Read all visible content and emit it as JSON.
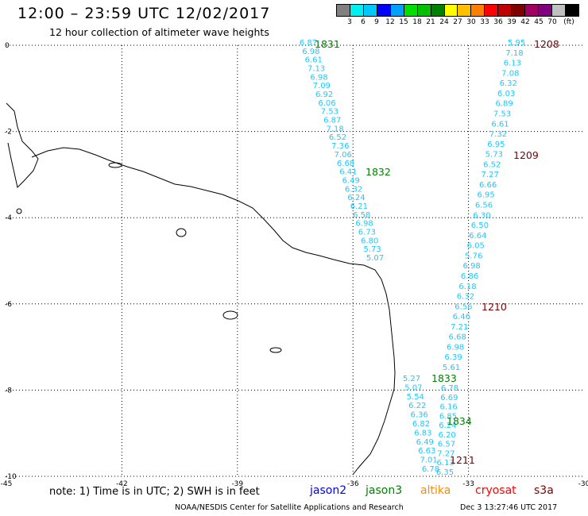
{
  "title": "12:00 – 23:59 UTC 12/02/2017",
  "subtitle": "12 hour collection of altimeter wave heights",
  "scale": {
    "colors": [
      "#808080",
      "#00f0f0",
      "#00c8ff",
      "#0000ff",
      "#00a0ff",
      "#00e000",
      "#00c000",
      "#008000",
      "#ffff00",
      "#ffc000",
      "#ff8000",
      "#ff0000",
      "#c00000",
      "#800000",
      "#a00060",
      "#800080",
      "#c0c0c0",
      "#000000"
    ],
    "labels": [
      "3",
      "6",
      "9",
      "12",
      "15",
      "18",
      "21",
      "24",
      "27",
      "30",
      "33",
      "36",
      "39",
      "42",
      "45",
      "70",
      "(ft)"
    ]
  },
  "axes": {
    "lon_ticks": [
      "-45",
      "-42",
      "-39",
      "-36",
      "-33",
      "-30"
    ],
    "lat_ticks": [
      "0",
      "-2",
      "-4",
      "-6",
      "-8",
      "-10"
    ]
  },
  "tracks": [
    {
      "sat": "jason3",
      "color": "#1ec8ff",
      "values": [
        "6.87",
        "6.98",
        "6.61",
        "7.13",
        "6.98",
        "7.09",
        "6.92",
        "6.06",
        "7.53",
        "6.87",
        "7.18",
        "6.52",
        "7.36",
        "7.06",
        "6.68",
        "6.41",
        "6.49",
        "6.32",
        "6.24",
        "6.21",
        "6.58",
        "6.98",
        "6.73",
        "6.80",
        "5.73",
        "5.07"
      ]
    },
    {
      "sat": "s3a",
      "color": "#1ec8ff",
      "values": [
        "5.95",
        "7.18",
        "6.13",
        "7.08",
        "6.32",
        "6.03",
        "6.89",
        "7.53",
        "6.61",
        "7.32",
        "6.95",
        "5.73",
        "6.52",
        "7.27",
        "6.66",
        "6.95",
        "6.56",
        "6.30",
        "6.50",
        "6.64",
        "6.05",
        "5.76",
        "6.98",
        "6.86",
        "6.18",
        "6.32",
        "6.56",
        "6.46",
        "7.21",
        "6.68",
        "6.98",
        "6.39",
        "5.61"
      ]
    },
    {
      "sat": "jason3-b",
      "color": "#1ec8ff",
      "values": [
        "5.27",
        "5.07",
        "5.54",
        "6.22",
        "6.36",
        "6.82",
        "6.83",
        "6.49",
        "6.63",
        "7.01",
        "6.78"
      ]
    },
    {
      "sat": "s3a-b",
      "color": "#1ec8ff",
      "values": [
        "6.78",
        "6.69",
        "6.16",
        "6.85",
        "6.24",
        "6.20",
        "6.57",
        "7.27",
        "6.13",
        "6.35"
      ]
    }
  ],
  "track_labels": [
    {
      "text": "1831",
      "color": "#008000"
    },
    {
      "text": "1832",
      "color": "#008000"
    },
    {
      "text": "1833",
      "color": "#008000"
    },
    {
      "text": "1834",
      "color": "#008000"
    },
    {
      "text": "1208",
      "color": "#800000"
    },
    {
      "text": "1209",
      "color": "#800000"
    },
    {
      "text": "1210",
      "color": "#800000"
    },
    {
      "text": "1211",
      "color": "#800000"
    }
  ],
  "footer": {
    "note": "note:  1) Time is in UTC;  2) SWH is in feet",
    "satellites": [
      {
        "name": "jason2",
        "color": "#0000ff"
      },
      {
        "name": "jason3",
        "color": "#008000"
      },
      {
        "name": "altika",
        "color": "#ff8c00"
      },
      {
        "name": "cryosat",
        "color": "#ff0000"
      },
      {
        "name": "s3a",
        "color": "#800000"
      }
    ],
    "credit": "NOAA/NESDIS Center for Satellite Applications and Research",
    "timestamp": "Dec  3 13:27:46 UTC 2017"
  }
}
